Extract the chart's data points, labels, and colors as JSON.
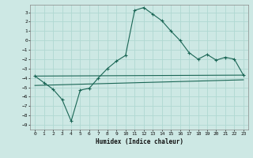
{
  "xlabel": "Humidex (Indice chaleur)",
  "bg_color": "#cde8e4",
  "grid_color": "#b0d8d2",
  "line_color": "#1a6655",
  "xlim": [
    -0.5,
    23.5
  ],
  "ylim": [
    -9.5,
    3.8
  ],
  "xticks": [
    0,
    1,
    2,
    3,
    4,
    5,
    6,
    7,
    8,
    9,
    10,
    11,
    12,
    13,
    14,
    15,
    16,
    17,
    18,
    19,
    20,
    21,
    22,
    23
  ],
  "yticks": [
    -9,
    -8,
    -7,
    -6,
    -5,
    -4,
    -3,
    -2,
    -1,
    0,
    1,
    2,
    3
  ],
  "line1_x": [
    0,
    1,
    2,
    3,
    4,
    5,
    6,
    7,
    8,
    9,
    10,
    11,
    12,
    13,
    14,
    15,
    16,
    17,
    18,
    19,
    20,
    21,
    22,
    23
  ],
  "line1_y": [
    -3.8,
    -4.5,
    -5.2,
    -6.3,
    -8.6,
    -5.3,
    -5.1,
    -4.0,
    -3.0,
    -2.2,
    -1.6,
    3.2,
    3.5,
    2.8,
    2.1,
    1.0,
    0.0,
    -1.3,
    -2.0,
    -1.5,
    -2.1,
    -1.8,
    -2.0,
    -3.7
  ],
  "line3_x": [
    0,
    23
  ],
  "line3_y": [
    -3.8,
    -3.7
  ],
  "line4_x": [
    0,
    23
  ],
  "line4_y": [
    -4.8,
    -4.2
  ]
}
